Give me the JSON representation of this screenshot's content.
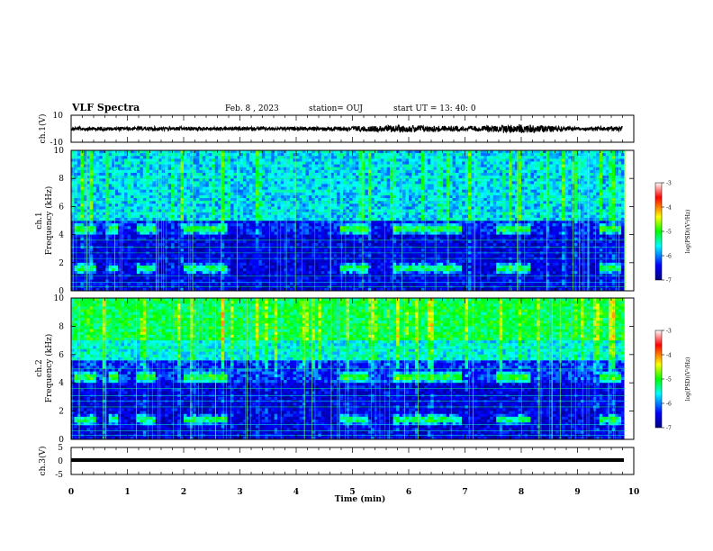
{
  "header": {
    "title": "VLF Spectra",
    "date": "Feb. 8  , 2023",
    "station": "station= OUJ",
    "start": "start  UT =   13: 40: 0"
  },
  "colors": {
    "background": "#ffffff",
    "axis": "#000000",
    "spectrogram_low": "#000080",
    "spectrogram_high": "#ff0000"
  },
  "chart_data": [
    {
      "type": "line",
      "name": "ch1-waveform",
      "ylabel": "ch.1(V)",
      "ylim": [
        -10,
        10
      ],
      "yticks": [
        "10",
        "-10"
      ],
      "xlim": [
        0,
        10
      ],
      "x": [
        0,
        1,
        2,
        3,
        4,
        4.8,
        5.4,
        6.1,
        7,
        8,
        9,
        9.8
      ],
      "amplitude": [
        1.0,
        1.0,
        1.1,
        1.0,
        1.0,
        1.3,
        1.6,
        2.0,
        1.2,
        2.5,
        1.0,
        1.4
      ]
    },
    {
      "type": "heatmap",
      "name": "ch1-spectrogram",
      "ylabel": "ch.1\nFrequency (kHz)",
      "ylabel_lines": [
        "ch.1",
        "Frequency (kHz)"
      ],
      "ylim": [
        0,
        10
      ],
      "yticks": [
        "10",
        "8",
        "6",
        "4",
        "2",
        "0"
      ],
      "xlim": [
        0,
        10
      ],
      "colorbar": {
        "range": [
          -7,
          -3
        ],
        "ticks": [
          "-3",
          "-4",
          "-5",
          "-6",
          "-7"
        ],
        "label": "log(PSD)(V²/Hz)"
      },
      "burst_intervals_min": [
        [
          0.05,
          0.45
        ],
        [
          0.65,
          0.85
        ],
        [
          1.15,
          1.5
        ],
        [
          2.0,
          2.75
        ],
        [
          4.8,
          5.3
        ],
        [
          5.7,
          6.95
        ],
        [
          7.55,
          8.15
        ],
        [
          9.4,
          9.8
        ]
      ],
      "bands_khz": [
        1.6,
        4.4
      ]
    },
    {
      "type": "heatmap",
      "name": "ch2-spectrogram",
      "ylabel": "ch.2\nFrequency (kHz)",
      "ylabel_lines": [
        "ch.2",
        "Frequency (kHz)"
      ],
      "ylim": [
        0,
        10
      ],
      "yticks": [
        "10",
        "8",
        "6",
        "4",
        "2",
        "0"
      ],
      "xlim": [
        0,
        10
      ],
      "colorbar": {
        "range": [
          -7,
          -3
        ],
        "ticks": [
          "-3",
          "-4",
          "-5",
          "-6",
          "-7"
        ],
        "label": "log(PSD)(V²/Hz)"
      },
      "burst_intervals_min": [
        [
          0.05,
          0.45
        ],
        [
          0.65,
          0.85
        ],
        [
          1.15,
          1.5
        ],
        [
          2.0,
          2.75
        ],
        [
          4.8,
          5.3
        ],
        [
          5.7,
          6.95
        ],
        [
          7.55,
          8.15
        ],
        [
          9.4,
          9.8
        ]
      ],
      "bands_khz": [
        1.4,
        4.4
      ]
    },
    {
      "type": "line",
      "name": "ch3-waveform",
      "ylabel": "ch.3(V)",
      "ylim": [
        -5,
        5
      ],
      "yticks": [
        "5",
        "0",
        "-5"
      ],
      "xlim": [
        0,
        10
      ],
      "x": [
        0,
        9.85
      ],
      "y": [
        -0.5,
        -0.5
      ]
    }
  ],
  "xaxis": {
    "label": "Time  (min)",
    "ticks": [
      "0",
      "1",
      "2",
      "3",
      "4",
      "5",
      "6",
      "7",
      "8",
      "9",
      "10"
    ]
  }
}
